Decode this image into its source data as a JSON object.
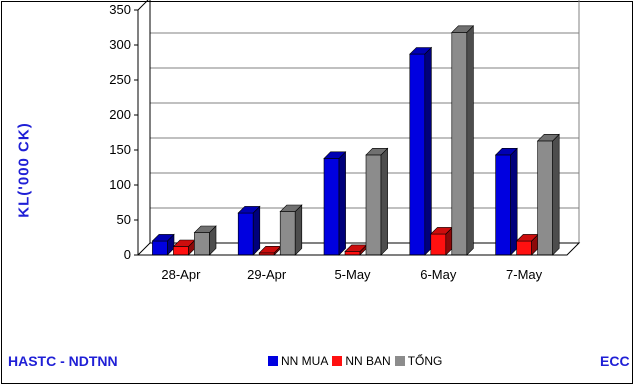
{
  "chart_data": {
    "type": "bar",
    "ylabel": "KL('000 CK)",
    "ylim": [
      0,
      350
    ],
    "yticks": [
      "0",
      "50",
      "100",
      "150",
      "200",
      "250",
      "300",
      "350"
    ],
    "categories": [
      "28-Apr",
      "29-Apr",
      "5-May",
      "6-May",
      "7-May"
    ],
    "grid": true,
    "legend_position": "bottom",
    "series": [
      {
        "name": "NN MUA",
        "color": "#0000e0",
        "values": [
          20,
          60,
          138,
          287,
          143
        ]
      },
      {
        "name": "NN BAN",
        "color": "#ff1010",
        "values": [
          12,
          3,
          5,
          30,
          20
        ]
      },
      {
        "name": "TỔNG",
        "color": "#8c8c8c",
        "values": [
          32,
          62,
          143,
          318,
          163
        ]
      }
    ]
  },
  "footer": {
    "left_text": "HASTC - NDTNN",
    "right_text": "ECC"
  }
}
